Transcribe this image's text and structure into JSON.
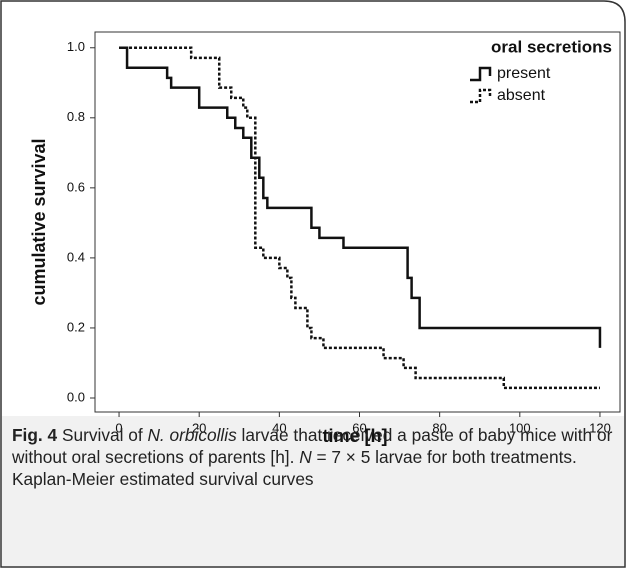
{
  "chart_data": {
    "type": "step-line",
    "x_label": "time [h]",
    "y_label": "cumulative survival",
    "legend_title": "oral secretions",
    "xlim": [
      -6,
      125
    ],
    "xticks": [
      0,
      20,
      40,
      60,
      80,
      100,
      120
    ],
    "ylim": [
      -0.04,
      1.045
    ],
    "yticks": [
      {
        "value": 0,
        "label": "0.0"
      },
      {
        "value": 0.2,
        "label": "0.2"
      },
      {
        "value": 0.4,
        "label": "0.4"
      },
      {
        "value": 0.6,
        "label": "0.6"
      },
      {
        "value": 0.8,
        "label": "0.8"
      },
      {
        "value": 1,
        "label": "1.0"
      }
    ],
    "legend_position": "upper right",
    "series": [
      {
        "name": "present",
        "color": "#111111",
        "line_style": "solid",
        "x": [
          0,
          2,
          2,
          12,
          12,
          13,
          13,
          20,
          20,
          27,
          27,
          29,
          29,
          31,
          31,
          33,
          33,
          35,
          35,
          36,
          36,
          37,
          37,
          48,
          48,
          50,
          50,
          56,
          56,
          72,
          72,
          73,
          73,
          75,
          75,
          120,
          120
        ],
        "values": [
          1,
          1,
          0.943,
          0.943,
          0.914,
          0.914,
          0.886,
          0.886,
          0.829,
          0.829,
          0.8,
          0.8,
          0.771,
          0.771,
          0.743,
          0.743,
          0.686,
          0.686,
          0.629,
          0.629,
          0.571,
          0.571,
          0.543,
          0.543,
          0.486,
          0.486,
          0.457,
          0.457,
          0.429,
          0.429,
          0.343,
          0.343,
          0.286,
          0.286,
          0.2,
          0.2,
          0.143
        ]
      },
      {
        "name": "absent",
        "color": "#111111",
        "line_style": "dotted",
        "x": [
          0,
          18,
          18,
          25,
          25,
          28,
          28,
          31,
          31,
          32,
          32,
          34,
          34,
          36,
          36,
          40,
          40,
          42,
          42,
          43,
          43,
          44,
          44,
          47,
          47,
          48,
          48,
          51,
          51,
          66,
          66,
          71,
          71,
          74,
          74,
          96,
          96,
          120
        ],
        "values": [
          1,
          1,
          0.971,
          0.971,
          0.886,
          0.886,
          0.857,
          0.857,
          0.829,
          0.829,
          0.8,
          0.8,
          0.429,
          0.429,
          0.4,
          0.4,
          0.371,
          0.371,
          0.343,
          0.343,
          0.286,
          0.286,
          0.257,
          0.257,
          0.2,
          0.2,
          0.171,
          0.171,
          0.143,
          0.143,
          0.114,
          0.114,
          0.086,
          0.086,
          0.057,
          0.057,
          0.029,
          0.029
        ]
      }
    ]
  },
  "caption": {
    "label": "Fig. 4",
    "parts": [
      "Survival of ",
      "N. orbicollis",
      " larvae that received a paste of baby mice with or without oral secretions of parents [h]. ",
      "N",
      " = 7 × 5 larvae for both treatments. Kaplan-Meier estimated survival curves"
    ]
  }
}
